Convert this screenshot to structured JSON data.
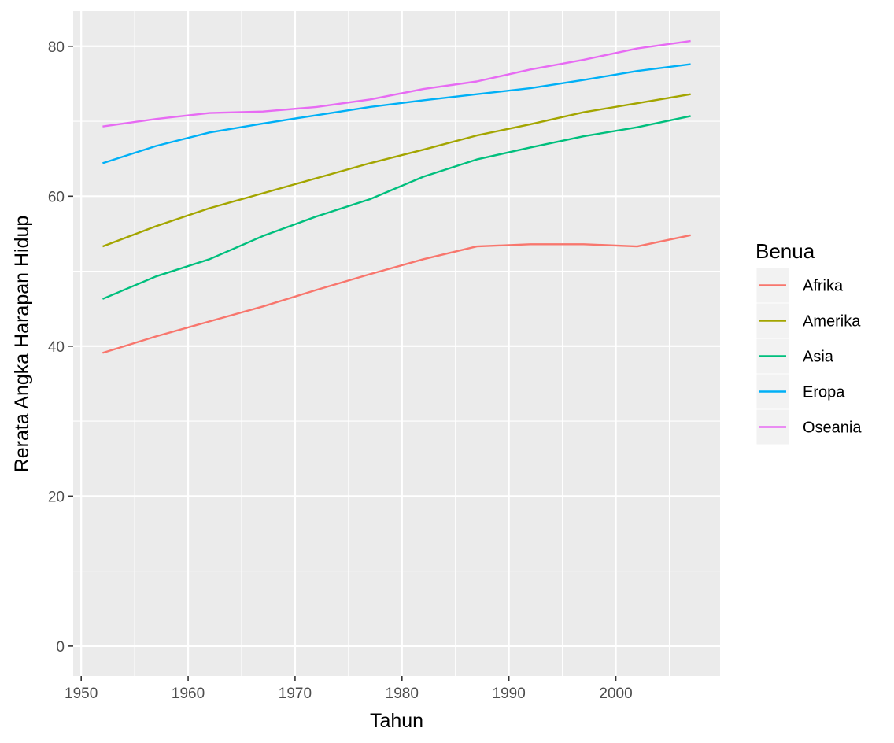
{
  "chart_data": {
    "type": "line",
    "xlabel": "Tahun",
    "ylabel": "Rerata Angka Harapan Hidup",
    "x": [
      1952,
      1957,
      1962,
      1967,
      1972,
      1977,
      1982,
      1987,
      1992,
      1997,
      2002,
      2007
    ],
    "xlim": [
      1949.25,
      2009.75
    ],
    "ylim": [
      -4.0,
      84.7
    ],
    "xticks": [
      1950,
      1960,
      1970,
      1980,
      1990,
      2000
    ],
    "yticks": [
      0,
      20,
      40,
      60,
      80
    ],
    "grid": true,
    "legend": {
      "title": "Benua",
      "position": "right"
    },
    "series": [
      {
        "name": "Afrika",
        "color": "#F8766D",
        "values": [
          39.1,
          41.3,
          43.3,
          45.3,
          47.5,
          49.6,
          51.6,
          53.3,
          53.6,
          53.6,
          53.3,
          54.8
        ]
      },
      {
        "name": "Amerika",
        "color": "#A3A500",
        "values": [
          53.3,
          56.0,
          58.4,
          60.4,
          62.4,
          64.4,
          66.2,
          68.1,
          69.6,
          71.2,
          72.4,
          73.6
        ]
      },
      {
        "name": "Asia",
        "color": "#00BF7D",
        "values": [
          46.3,
          49.3,
          51.6,
          54.7,
          57.3,
          59.6,
          62.6,
          64.9,
          66.5,
          68.0,
          69.2,
          70.7
        ]
      },
      {
        "name": "Eropa",
        "color": "#00B0F6",
        "values": [
          64.4,
          66.7,
          68.5,
          69.7,
          70.8,
          71.9,
          72.8,
          73.6,
          74.4,
          75.5,
          76.7,
          77.6
        ]
      },
      {
        "name": "Oseania",
        "color": "#E76BF3",
        "values": [
          69.3,
          70.3,
          71.1,
          71.3,
          71.9,
          72.9,
          74.3,
          75.3,
          76.9,
          78.2,
          79.7,
          80.7
        ]
      }
    ]
  }
}
